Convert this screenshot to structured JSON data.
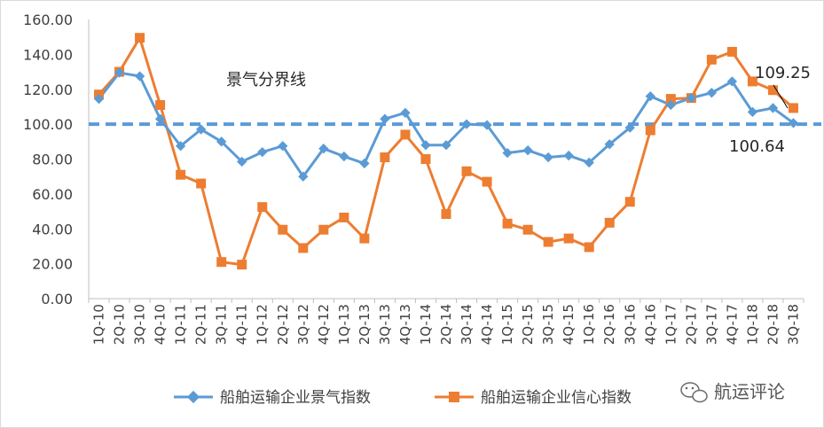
{
  "chart_data": {
    "type": "line",
    "categories": [
      "1Q-10",
      "2Q-10",
      "3Q-10",
      "4Q-10",
      "1Q-11",
      "2Q-11",
      "3Q-11",
      "4Q-11",
      "1Q-12",
      "2Q-12",
      "3Q-12",
      "4Q-12",
      "1Q-13",
      "2Q-13",
      "3Q-13",
      "4Q-13",
      "1Q-14",
      "2Q-14",
      "3Q-14",
      "4Q-14",
      "1Q-15",
      "2Q-15",
      "3Q-15",
      "4Q-15",
      "1Q-16",
      "2Q-16",
      "3Q-16",
      "4Q-16",
      "1Q-17",
      "2Q-17",
      "3Q-17",
      "4Q-17",
      "1Q-18",
      "2Q-18",
      "3Q-18"
    ],
    "y_ticks": [
      "0.00",
      "20.00",
      "40.00",
      "60.00",
      "80.00",
      "100.00",
      "120.00",
      "140.00",
      "160.00"
    ],
    "ylim": [
      0,
      160
    ],
    "series": [
      {
        "name": "船舶运输企业景气指数",
        "color": "#5b9bd5",
        "marker": "diamond",
        "values": [
          114.5,
          129.5,
          127.5,
          103,
          87.5,
          97,
          90,
          78.5,
          84,
          87.5,
          70,
          86,
          81.5,
          77.5,
          103,
          106.5,
          88,
          88,
          100,
          99.5,
          83.5,
          85,
          81,
          82,
          78,
          88.5,
          98,
          116,
          111,
          115,
          118,
          124.5,
          107,
          109.25,
          100.64
        ]
      },
      {
        "name": "船舶运输企业信心指数",
        "color": "#ed7d31",
        "marker": "square",
        "values": [
          117,
          130,
          149.5,
          111,
          71,
          66,
          21,
          19.5,
          52.5,
          39.5,
          29,
          39.5,
          46.5,
          34.5,
          81,
          94,
          80,
          48.5,
          73,
          67,
          43,
          39.5,
          32.5,
          34.5,
          29.5,
          43.5,
          55.5,
          96.5,
          114.5,
          115,
          137,
          141.5,
          124.5,
          119.5,
          109.25
        ]
      }
    ],
    "boom_line": {
      "label": "景气分界线",
      "value": 100,
      "color": "#5b9bd5"
    },
    "annotations": {
      "confidence_last": "109.25",
      "boom_last": "100.64"
    },
    "grid": false,
    "legend": "bottom"
  },
  "watermark": {
    "icon": "wechat-icon",
    "text": "航运评论"
  }
}
